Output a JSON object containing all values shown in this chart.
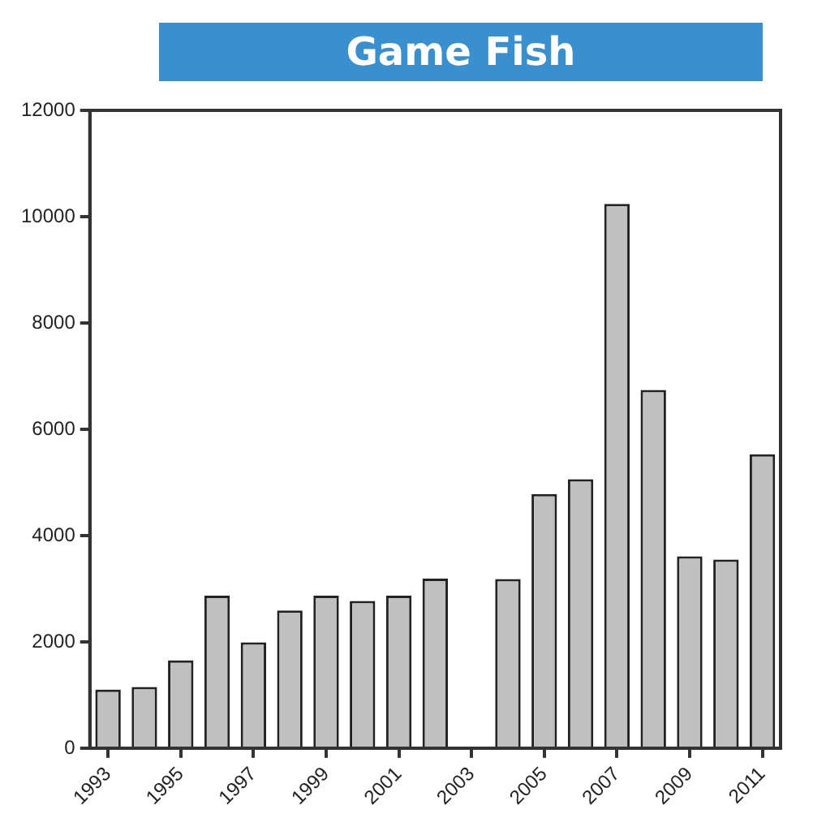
{
  "chart_data": {
    "type": "bar",
    "title": "Game Fish",
    "categories": [
      "1993",
      null,
      "1995",
      null,
      "1997",
      null,
      "1999",
      null,
      "2001",
      null,
      "2003",
      null,
      "2005",
      null,
      "2007",
      null,
      "2009",
      null,
      "2011"
    ],
    "values": [
      1100,
      1150,
      1650,
      2870,
      1990,
      2590,
      2870,
      2770,
      2870,
      3190,
      null,
      3180,
      4780,
      5060,
      10240,
      6740,
      3610,
      3550,
      5530
    ],
    "color": "#c0c0c0",
    "ylim": [
      0,
      12000
    ],
    "yticks": [
      0,
      2000,
      4000,
      6000,
      8000,
      10000,
      12000
    ],
    "grid": false,
    "legend": false
  }
}
